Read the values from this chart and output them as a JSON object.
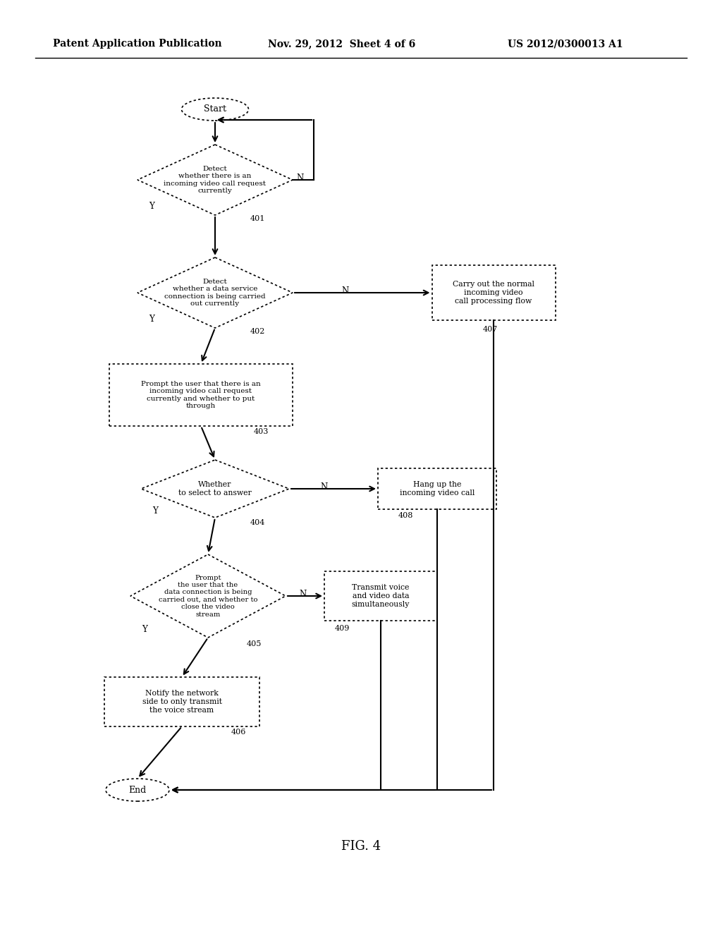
{
  "background_color": "#ffffff",
  "header_left": "Patent Application Publication",
  "header_mid": "Nov. 29, 2012  Sheet 4 of 6",
  "header_right": "US 2012/0300013 A1",
  "caption": "FIG. 4"
}
